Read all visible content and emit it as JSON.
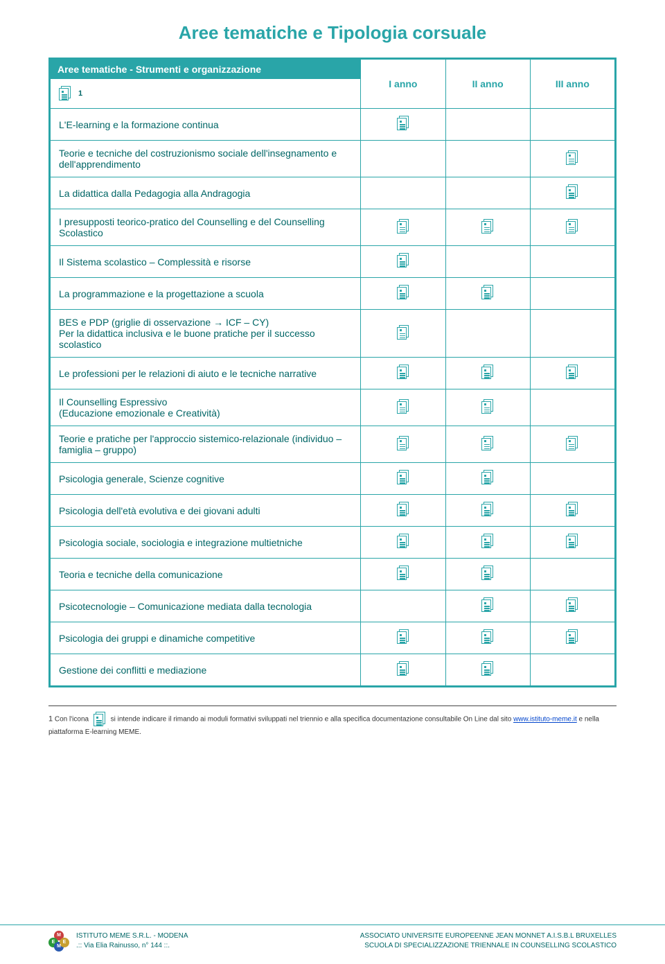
{
  "title": "Aree tematiche e Tipologia corsuale",
  "header": {
    "desc": "Aree tematiche - Strumenti e organizzazione",
    "sup": "1",
    "cols": [
      "I anno",
      "II anno",
      "III anno"
    ]
  },
  "rows": [
    {
      "label": "L'E-learning e la formazione continua",
      "y": [
        true,
        false,
        false
      ]
    },
    {
      "label": "Teorie e tecniche del costruzionismo sociale dell'insegnamento e dell'apprendimento",
      "y": [
        false,
        false,
        true
      ]
    },
    {
      "label": "La didattica dalla Pedagogia alla Andragogia",
      "y": [
        false,
        false,
        true
      ]
    },
    {
      "label": "I presupposti teorico-pratico del Counselling e del Counselling Scolastico",
      "y": [
        true,
        true,
        true
      ]
    },
    {
      "label": "Il Sistema scolastico – Complessità e risorse",
      "y": [
        true,
        false,
        false
      ]
    },
    {
      "label": "La programmazione e la progettazione a scuola",
      "y": [
        true,
        true,
        false
      ]
    },
    {
      "label": "BES e PDP (griglie di osservazione → ICF – CY)\nPer la didattica inclusiva e le buone pratiche per il successo scolastico",
      "y": [
        true,
        false,
        false
      ]
    },
    {
      "label": "Le professioni per le relazioni di aiuto e le tecniche narrative",
      "y": [
        true,
        true,
        true
      ]
    },
    {
      "label": "Il Counselling Espressivo\n(Educazione emozionale e Creatività)",
      "y": [
        true,
        true,
        false
      ]
    },
    {
      "label": "Teorie e pratiche per l'approccio sistemico-relazionale (individuo – famiglia – gruppo)",
      "y": [
        true,
        true,
        true
      ]
    },
    {
      "label": "Psicologia generale, Scienze cognitive",
      "y": [
        true,
        true,
        false
      ]
    },
    {
      "label": "Psicologia dell'età evolutiva e dei giovani adulti",
      "y": [
        true,
        true,
        true
      ]
    },
    {
      "label": "Psicologia sociale, sociologia e integrazione multietniche",
      "y": [
        true,
        true,
        true
      ]
    },
    {
      "label": "Teoria e tecniche della comunicazione",
      "y": [
        true,
        true,
        false
      ]
    },
    {
      "label": "Psicotecnologie – Comunicazione mediata dalla tecnologia",
      "y": [
        false,
        true,
        true
      ]
    },
    {
      "label": "Psicologia dei gruppi e dinamiche competitive",
      "y": [
        true,
        true,
        true
      ]
    },
    {
      "label": "Gestione dei conflitti e mediazione",
      "y": [
        true,
        true,
        false
      ]
    }
  ],
  "footnote": {
    "sup": "1",
    "before": " Con l'icona ",
    "after": " si intende indicare il rimando ai moduli formativi sviluppati nel triennio e alla specifica documentazione consultabile On Line dal sito ",
    "link": "www.istituto-meme.it",
    "tail": " e nella piattaforma  E-learning MEME."
  },
  "footer": {
    "left1": "ISTITUTO MEME S.R.L.  -  MODENA",
    "left2": ".:: Via Elia Rainusso, n° 144 ::.",
    "right1": "ASSOCIATO UNIVERSITE EUROPEENNE JEAN MONNET A.I.S.B.L  BRUXELLES",
    "right2": "SCUOLA DI SPECIALIZZAZIONE TRIENNALE IN COUNSELLING SCOLASTICO"
  },
  "colors": {
    "accent": "#29a5a8",
    "text": "#016666",
    "bg": "#ffffff"
  }
}
